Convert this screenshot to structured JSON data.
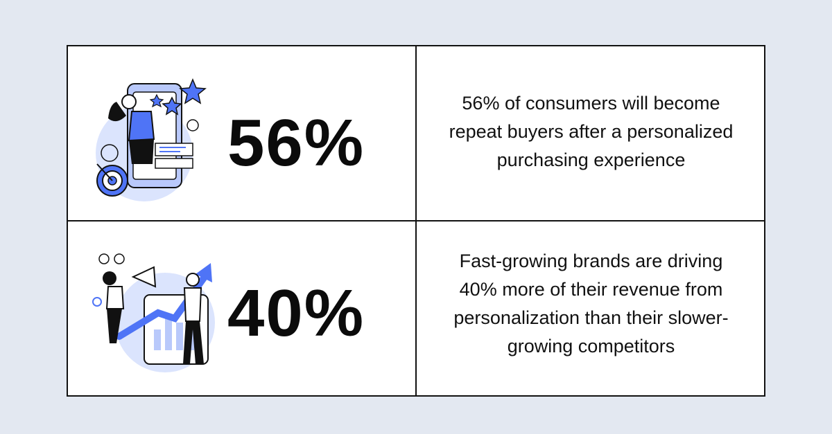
{
  "rows": [
    {
      "stat": "56%",
      "description": "56% of consumers will become repeat buyers after a personalized purchasing experience",
      "illustration": "woman-phone-stars-target-illustration"
    },
    {
      "stat": "40%",
      "description": "Fast-growing brands are driving 40% more of their revenue from personalization than their slower-growing competitors",
      "illustration": "team-growth-chart-megaphone-illustration"
    }
  ],
  "colors": {
    "background": "#e3e8f1",
    "card": "#ffffff",
    "border": "#111111",
    "accent_blue": "#4f74f6",
    "light_blue": "#b9c9fb"
  }
}
